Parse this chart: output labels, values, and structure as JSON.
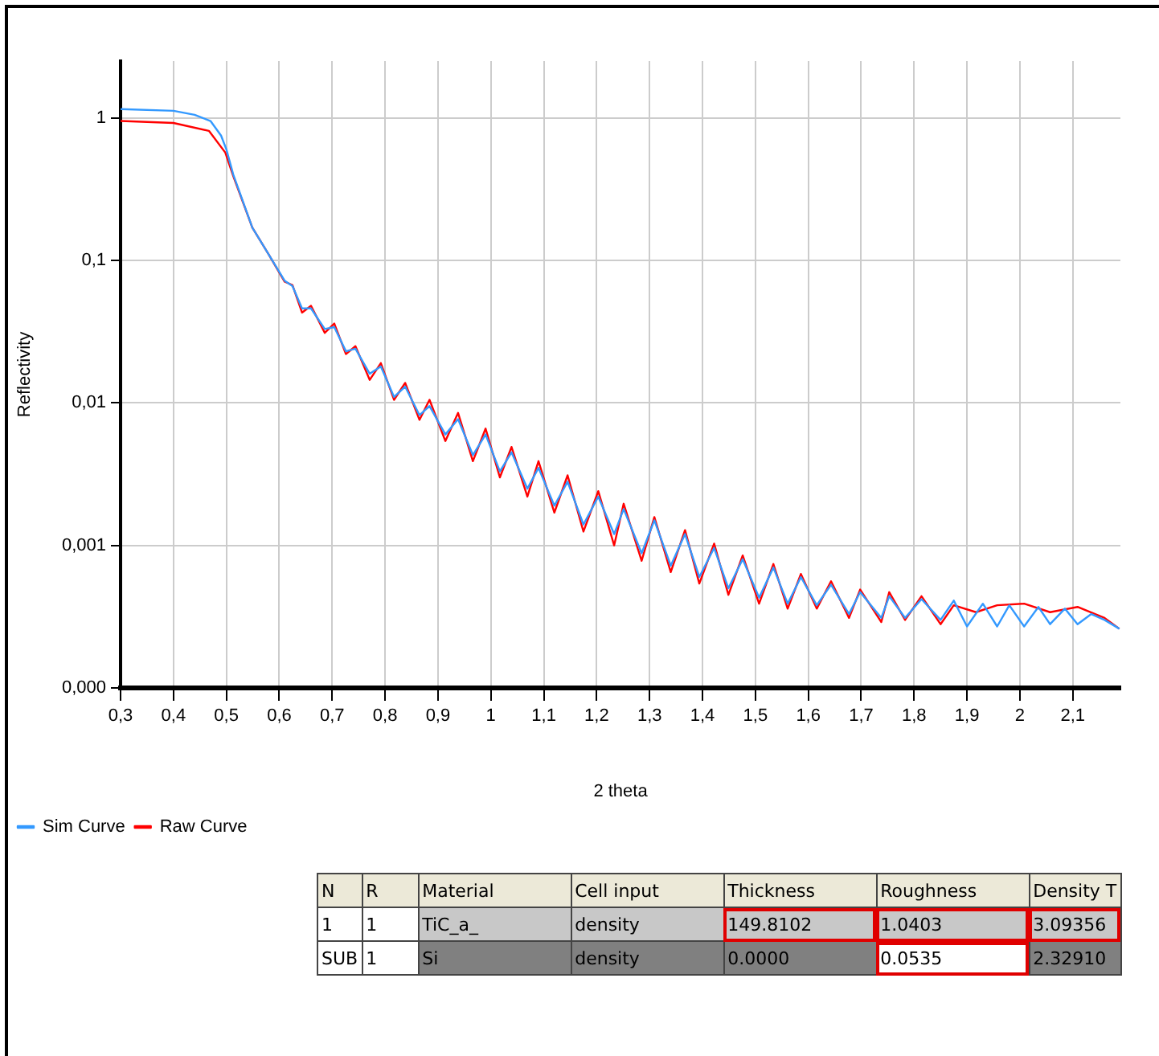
{
  "chart_data": [
    {
      "type": "line",
      "xlabel": "2 theta",
      "ylabel": "Reflectivity",
      "log": "y",
      "grid": true,
      "legend": "bottom left",
      "marker": "none",
      "line_style": "solid",
      "xlim": [
        0.3,
        2.19
      ],
      "xticks": [
        {
          "value": 0.3,
          "label": "0,3"
        },
        {
          "value": 0.4,
          "label": "0,4"
        },
        {
          "value": 0.5,
          "label": "0,5"
        },
        {
          "value": 0.6,
          "label": "0,6"
        },
        {
          "value": 0.7,
          "label": "0,7"
        },
        {
          "value": 0.8,
          "label": "0,8"
        },
        {
          "value": 0.9,
          "label": "0,9"
        },
        1,
        {
          "value": 1.1,
          "label": "1,1"
        },
        {
          "value": 1.2,
          "label": "1,2"
        },
        {
          "value": 1.3,
          "label": "1,3"
        },
        {
          "value": 1.4,
          "label": "1,4"
        },
        {
          "value": 1.5,
          "label": "1,5"
        },
        {
          "value": 1.6,
          "label": "1,6"
        },
        {
          "value": 1.7,
          "label": "1,7"
        },
        {
          "value": 1.8,
          "label": "1,8"
        },
        {
          "value": 1.9,
          "label": "1,9"
        },
        2,
        {
          "value": 2.1,
          "label": "2,1"
        }
      ],
      "ylim": [
        0.0001,
        2.5
      ],
      "yticks": [
        {
          "value": 0.0001,
          "label": "0,000"
        },
        {
          "value": 0.001,
          "label": "0,001"
        },
        {
          "value": 0.01,
          "label": "0,01"
        },
        {
          "value": 0.1,
          "label": "0,1"
        },
        1
      ],
      "series": [
        {
          "name": "Sim Curve",
          "color": "#3399ff",
          "x": [
            0.3,
            0.4,
            0.44,
            0.47,
            0.49,
            0.5,
            0.513,
            0.549,
            0.58,
            0.61,
            0.625,
            0.643,
            0.66,
            0.686,
            0.704,
            0.726,
            0.744,
            0.771,
            0.792,
            0.817,
            0.838,
            0.865,
            0.884,
            0.914,
            0.938,
            0.966,
            0.99,
            1.017,
            1.039,
            1.069,
            1.09,
            1.12,
            1.145,
            1.175,
            1.203,
            1.233,
            1.251,
            1.285,
            1.309,
            1.34,
            1.367,
            1.394,
            1.422,
            1.449,
            1.476,
            1.507,
            1.534,
            1.561,
            1.586,
            1.616,
            1.643,
            1.677,
            1.698,
            1.738,
            1.753,
            1.783,
            1.814,
            1.85,
            1.875,
            1.9,
            1.93,
            1.957,
            1.98,
            2.008,
            2.035,
            2.057,
            2.085,
            2.109,
            2.135,
            2.16,
            2.188
          ],
          "values": [
            1.15,
            1.12,
            1.05,
            0.95,
            0.75,
            0.6,
            0.4,
            0.17,
            0.11,
            0.072,
            0.066,
            0.046,
            0.046,
            0.033,
            0.034,
            0.023,
            0.024,
            0.016,
            0.018,
            0.011,
            0.013,
            0.0082,
            0.0095,
            0.006,
            0.0077,
            0.0043,
            0.006,
            0.0033,
            0.0045,
            0.0025,
            0.0035,
            0.0019,
            0.0028,
            0.0014,
            0.0022,
            0.0012,
            0.0018,
            0.00088,
            0.0015,
            0.00072,
            0.0012,
            0.0006,
            0.00096,
            0.0005,
            0.0008,
            0.00043,
            0.0007,
            0.00039,
            0.0006,
            0.00038,
            0.00053,
            0.00033,
            0.00047,
            0.00031,
            0.00044,
            0.00031,
            0.00042,
            0.0003,
            0.00041,
            0.00027,
            0.00039,
            0.00027,
            0.00038,
            0.00027,
            0.00037,
            0.00028,
            0.00036,
            0.00028,
            0.00033,
            0.0003,
            0.00026
          ]
        },
        {
          "name": "Raw Curve",
          "color": "#ff0000",
          "x": [
            0.3,
            0.4,
            0.467,
            0.498,
            0.513,
            0.549,
            0.58,
            0.61,
            0.625,
            0.643,
            0.66,
            0.686,
            0.704,
            0.726,
            0.744,
            0.771,
            0.792,
            0.817,
            0.838,
            0.865,
            0.884,
            0.914,
            0.938,
            0.966,
            0.99,
            1.017,
            1.039,
            1.069,
            1.09,
            1.12,
            1.145,
            1.175,
            1.203,
            1.233,
            1.251,
            1.285,
            1.309,
            1.34,
            1.367,
            1.394,
            1.422,
            1.449,
            1.476,
            1.507,
            1.534,
            1.561,
            1.586,
            1.616,
            1.643,
            1.677,
            1.698,
            1.738,
            1.753,
            1.783,
            1.814,
            1.85,
            1.875,
            1.917,
            1.957,
            2.008,
            2.057,
            2.109,
            2.16,
            2.188
          ],
          "values": [
            0.95,
            0.92,
            0.81,
            0.57,
            0.39,
            0.17,
            0.11,
            0.071,
            0.067,
            0.043,
            0.048,
            0.031,
            0.036,
            0.022,
            0.025,
            0.0145,
            0.019,
            0.0105,
            0.0138,
            0.0076,
            0.0105,
            0.0054,
            0.0085,
            0.0039,
            0.0066,
            0.003,
            0.0049,
            0.0022,
            0.0039,
            0.0017,
            0.0031,
            0.00125,
            0.0024,
            0.001,
            0.00196,
            0.00078,
            0.00158,
            0.00065,
            0.00128,
            0.00054,
            0.00103,
            0.00045,
            0.00085,
            0.00039,
            0.00074,
            0.00036,
            0.00063,
            0.00036,
            0.00056,
            0.00031,
            0.00049,
            0.00029,
            0.00047,
            0.0003,
            0.00044,
            0.00028,
            0.00038,
            0.00034,
            0.00038,
            0.00039,
            0.00034,
            0.00037,
            0.00031,
            0.00026
          ]
        }
      ]
    },
    {
      "type": "other",
      "categories": [
        "N",
        "R",
        "Material",
        "Cell input",
        "Thickness",
        "Roughness",
        "Density T"
      ],
      "annotations": [
        "1",
        "1",
        "TiC_a_",
        "density",
        "149.8102",
        "1.0403",
        "3.09356",
        "SUB",
        "1",
        "Si",
        "density",
        "0.0000",
        "0.0535",
        "2.32910"
      ]
    }
  ]
}
